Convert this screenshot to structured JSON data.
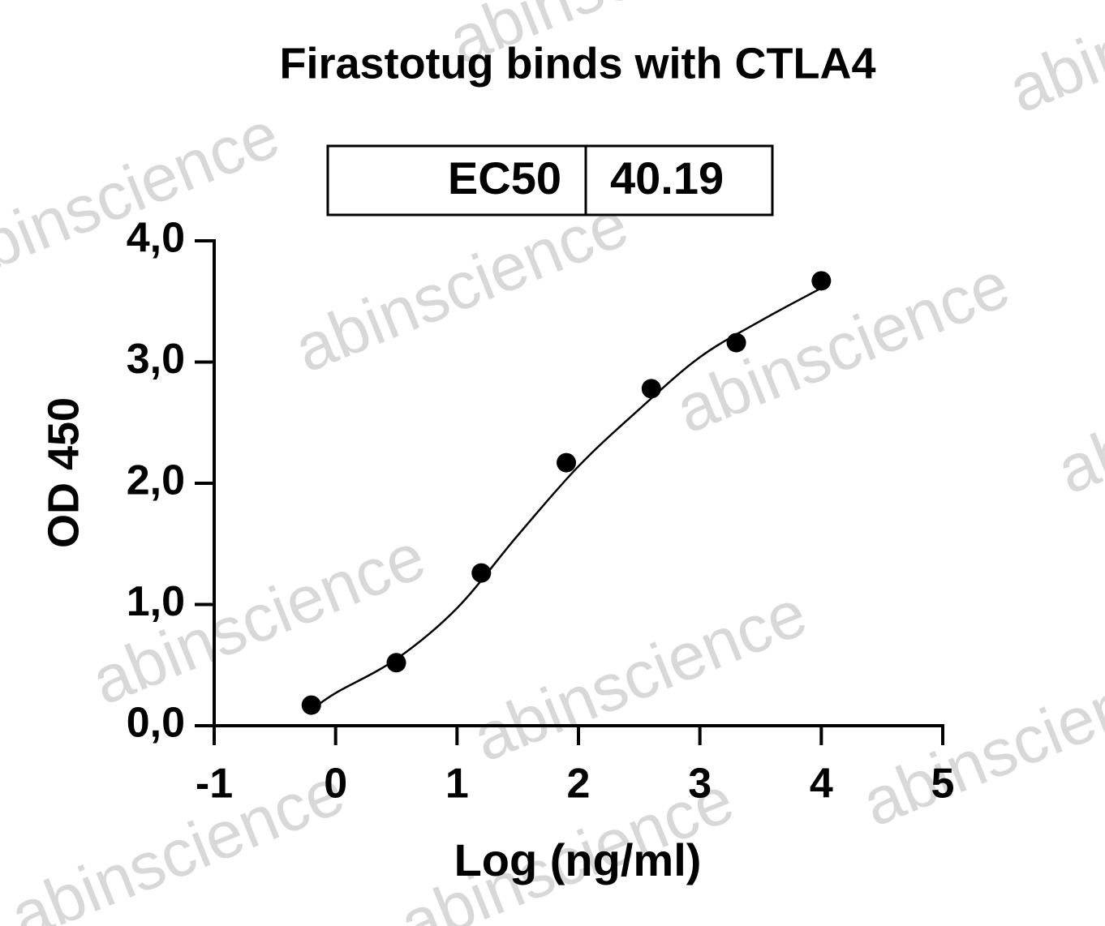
{
  "chart_data": {
    "type": "scatter",
    "title": "Firastotug binds with CTLA4",
    "watermark": "abinscience",
    "annotations": [
      {
        "label": "EC50",
        "value": 40.19
      }
    ],
    "x_label": "Log (ng/ml)",
    "y_label": "OD 450",
    "xlim": [
      -1,
      5
    ],
    "xticks": [
      -1,
      0,
      1,
      2,
      3,
      4,
      5
    ],
    "ylim": [
      0,
      4
    ],
    "yticks": [
      {
        "value": 0,
        "label": "0,0"
      },
      {
        "value": 1,
        "label": "1,0"
      },
      {
        "value": 2,
        "label": "2,0"
      },
      {
        "value": 3,
        "label": "3,0"
      },
      {
        "value": 4,
        "label": "4,0"
      }
    ],
    "series": [
      {
        "type": "scatter",
        "color": "#000000",
        "x": [
          -0.2,
          0.5,
          1.2,
          1.9,
          2.6,
          3.3,
          4.0
        ],
        "values": [
          0.17,
          0.52,
          1.26,
          2.17,
          2.78,
          3.16,
          3.67
        ]
      },
      {
        "type": "line",
        "color": "#000000",
        "x": [
          -0.2,
          0,
          0.5,
          1,
          1.5,
          2,
          2.5,
          3,
          3.5,
          4
        ],
        "values": [
          0.13,
          0.27,
          0.55,
          0.97,
          1.57,
          2.14,
          2.61,
          3.04,
          3.34,
          3.61
        ]
      }
    ]
  }
}
